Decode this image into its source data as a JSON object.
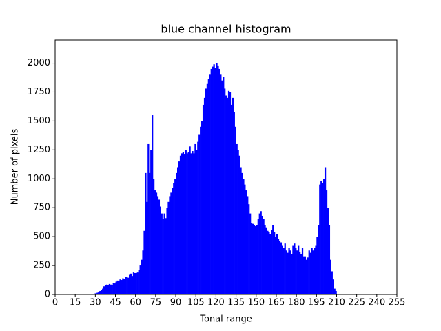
{
  "chart_data": {
    "type": "histogram",
    "title": "blue channel histogram",
    "x_label": "Tonal range",
    "y_label": "Number of pixels",
    "color": "#0000ff",
    "bins": [
      0,
      1,
      2,
      3,
      4,
      5,
      6,
      7,
      8,
      9,
      10,
      11,
      12,
      13,
      14,
      15,
      16,
      17,
      18,
      19,
      20,
      21,
      22,
      23,
      24,
      25,
      26,
      27,
      28,
      29,
      30,
      31,
      32,
      33,
      34,
      35,
      36,
      37,
      38,
      39,
      40,
      41,
      42,
      43,
      44,
      45,
      46,
      47,
      48,
      49,
      50,
      51,
      52,
      53,
      54,
      55,
      56,
      57,
      58,
      59,
      60,
      61,
      62,
      63,
      64,
      65,
      66,
      67,
      68,
      69,
      70,
      71,
      72,
      73,
      74,
      75,
      76,
      77,
      78,
      79,
      80,
      81,
      82,
      83,
      84,
      85,
      86,
      87,
      88,
      89,
      90,
      91,
      92,
      93,
      94,
      95,
      96,
      97,
      98,
      99,
      100,
      101,
      102,
      103,
      104,
      105,
      106,
      107,
      108,
      109,
      110,
      111,
      112,
      113,
      114,
      115,
      116,
      117,
      118,
      119,
      120,
      121,
      122,
      123,
      124,
      125,
      126,
      127,
      128,
      129,
      130,
      131,
      132,
      133,
      134,
      135,
      136,
      137,
      138,
      139,
      140,
      141,
      142,
      143,
      144,
      145,
      146,
      147,
      148,
      149,
      150,
      151,
      152,
      153,
      154,
      155,
      156,
      157,
      158,
      159,
      160,
      161,
      162,
      163,
      164,
      165,
      166,
      167,
      168,
      169,
      170,
      171,
      172,
      173,
      174,
      175,
      176,
      177,
      178,
      179,
      180,
      181,
      182,
      183,
      184,
      185,
      186,
      187,
      188,
      189,
      190,
      191,
      192,
      193,
      194,
      195,
      196,
      197,
      198,
      199,
      200,
      201,
      202,
      203,
      204,
      205,
      206,
      207,
      208,
      209,
      210,
      211,
      212,
      213,
      214,
      215,
      216,
      217,
      218,
      219,
      220,
      221,
      222,
      223,
      224,
      225,
      226,
      227,
      228,
      229,
      230,
      231,
      232,
      233,
      234,
      235,
      236,
      237,
      238,
      239,
      240,
      241,
      242,
      243,
      244,
      245,
      246,
      247,
      248,
      249,
      250,
      251,
      252,
      253,
      254,
      255,
      256
    ],
    "counts": [
      0,
      0,
      0,
      0,
      0,
      0,
      0,
      0,
      0,
      0,
      0,
      0,
      0,
      0,
      0,
      0,
      0,
      0,
      0,
      0,
      0,
      0,
      0,
      0,
      0,
      2,
      0,
      5,
      3,
      8,
      10,
      15,
      20,
      30,
      40,
      50,
      70,
      80,
      85,
      80,
      90,
      85,
      80,
      100,
      95,
      110,
      120,
      115,
      130,
      125,
      140,
      135,
      150,
      155,
      145,
      170,
      180,
      160,
      190,
      185,
      185,
      190,
      210,
      250,
      300,
      380,
      550,
      1050,
      800,
      1300,
      1050,
      1250,
      1550,
      1000,
      900,
      880,
      850,
      820,
      760,
      700,
      650,
      700,
      660,
      750,
      800,
      850,
      880,
      920,
      960,
      1000,
      1050,
      1100,
      1150,
      1200,
      1220,
      1230,
      1210,
      1250,
      1220,
      1230,
      1280,
      1220,
      1240,
      1220,
      1300,
      1250,
      1320,
      1380,
      1450,
      1500,
      1640,
      1700,
      1780,
      1820,
      1860,
      1900,
      1950,
      1970,
      1990,
      1960,
      2000,
      1980,
      1950,
      1900,
      1850,
      1880,
      1780,
      1720,
      1700,
      1760,
      1750,
      1640,
      1700,
      1580,
      1450,
      1300,
      1250,
      1200,
      1100,
      1050,
      1000,
      950,
      900,
      850,
      780,
      700,
      620,
      610,
      600,
      590,
      600,
      650,
      700,
      720,
      680,
      650,
      600,
      580,
      550,
      540,
      520,
      560,
      600,
      540,
      500,
      520,
      480,
      460,
      450,
      420,
      400,
      440,
      380,
      360,
      400,
      380,
      350,
      420,
      440,
      400,
      380,
      420,
      370,
      350,
      400,
      330,
      330,
      300,
      320,
      380,
      360,
      400,
      380,
      400,
      420,
      500,
      600,
      950,
      980,
      960,
      1000,
      1100,
      900,
      750,
      600,
      300,
      200,
      130,
      50,
      30,
      0,
      0,
      0,
      0,
      0,
      0,
      0,
      0,
      0,
      0,
      0,
      0,
      0,
      0,
      0,
      0,
      0,
      0,
      0,
      0,
      0,
      0,
      0,
      0,
      0,
      0,
      0,
      0,
      0,
      0,
      0,
      0,
      0,
      0,
      0,
      0,
      0,
      0,
      0,
      0,
      0,
      0,
      0,
      0,
      0,
      0
    ],
    "xlim": [
      0,
      255
    ],
    "ylim": [
      0,
      2200
    ],
    "xticks": [
      0,
      15,
      30,
      45,
      60,
      75,
      90,
      105,
      120,
      135,
      150,
      165,
      180,
      195,
      210,
      225,
      240,
      255
    ],
    "yticks": [
      0,
      250,
      500,
      750,
      1000,
      1250,
      1500,
      1750,
      2000
    ]
  }
}
